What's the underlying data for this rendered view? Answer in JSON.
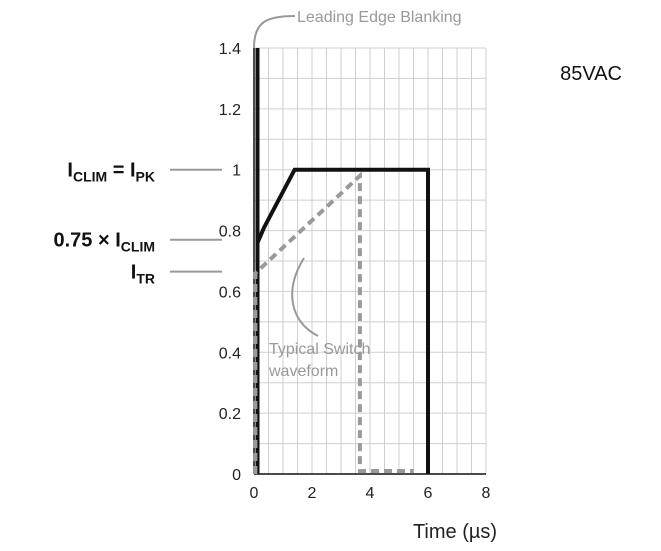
{
  "chart_data": {
    "type": "line",
    "title": "",
    "xlabel": "Time (µs)",
    "ylabel": "",
    "xlim": [
      0,
      8
    ],
    "ylim": [
      0,
      1.4
    ],
    "x_ticks": [
      "0",
      "2",
      "4",
      "6",
      "8"
    ],
    "y_ticks": [
      "0",
      "0.2",
      "0.4",
      "0.6",
      "0.8",
      "1",
      "1.2",
      "1.4"
    ],
    "x_tick_values": [
      0,
      2,
      4,
      6,
      8
    ],
    "y_tick_values": [
      0,
      0.2,
      0.4,
      0.6,
      0.8,
      1.0,
      1.2,
      1.4
    ],
    "grid": true,
    "corner_label": "85VAC",
    "series": [
      {
        "style": "solid-black",
        "color": "#111111",
        "points": [
          [
            0.12,
            0
          ],
          [
            0.12,
            1.4
          ],
          [
            0.12,
            0.76
          ],
          [
            0.35,
            0.81
          ],
          [
            1.4,
            1.0
          ],
          [
            6.0,
            1.0
          ],
          [
            6.0,
            0
          ]
        ]
      },
      {
        "style": "dashed-gray",
        "color": "#9a9a9a",
        "points": [
          [
            0.05,
            0
          ],
          [
            0.05,
            0.66
          ],
          [
            3.65,
            0.98
          ],
          [
            3.65,
            0.01
          ],
          [
            5.5,
            0.01
          ]
        ]
      }
    ],
    "annotations": {
      "leading_edge": {
        "text": "Leading Edge Blanking"
      },
      "typical_switch": {
        "lines": [
          "Typical Switch",
          "waveform"
        ]
      }
    },
    "external_labels": [
      {
        "main": "I",
        "sub": "CLIM",
        "mid": " = I",
        "sub2": "PK",
        "value": 1.0
      },
      {
        "main": "0.75 × I",
        "sub": "CLIM",
        "value": 0.77
      },
      {
        "main": "I",
        "sub": "TR",
        "value": 0.665
      }
    ]
  }
}
